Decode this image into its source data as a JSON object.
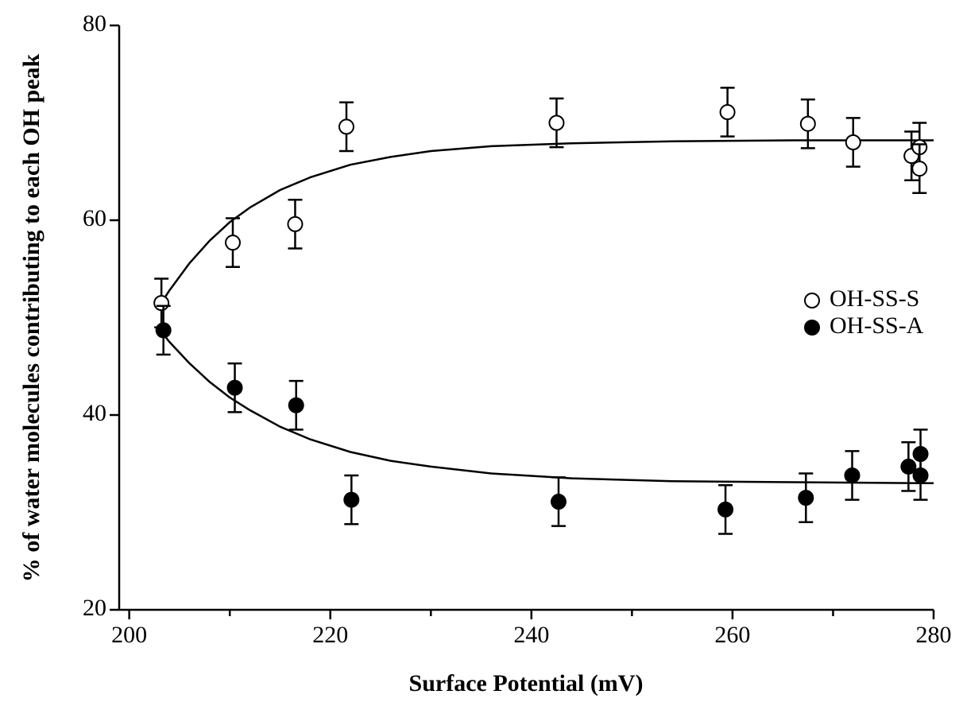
{
  "chart_data": {
    "type": "scatter",
    "xlabel": "Surface Potential (mV)",
    "ylabel": "% of water molecules contributing to each OH peak",
    "xlim": [
      199,
      280
    ],
    "xticks": [
      200,
      220,
      240,
      260,
      280
    ],
    "xminor_ticks": [
      210,
      230,
      250,
      270
    ],
    "ylim": [
      20,
      80
    ],
    "yticks": [
      20,
      40,
      60,
      80
    ],
    "legend": "right",
    "series": [
      {
        "name": "OH-SS-S",
        "color": "#000000",
        "filled": false,
        "x": [
          203.2,
          210.3,
          216.5,
          221.6,
          242.5,
          259.5,
          267.5,
          272.0,
          277.8,
          278.6,
          278.6
        ],
        "values": [
          51.5,
          57.7,
          59.6,
          69.6,
          70.0,
          71.1,
          69.9,
          68.0,
          66.6,
          67.5,
          65.3
        ],
        "errors": [
          2.5,
          2.5,
          2.5,
          2.5,
          2.5,
          2.5,
          2.5,
          2.5,
          2.5,
          2.5,
          2.5
        ]
      },
      {
        "name": "OH-SS-A",
        "color": "#000000",
        "filled": true,
        "x": [
          203.4,
          210.5,
          216.6,
          222.1,
          242.7,
          259.3,
          267.3,
          271.9,
          277.5,
          278.7,
          278.7
        ],
        "values": [
          48.7,
          42.8,
          41.0,
          31.3,
          31.1,
          30.3,
          31.5,
          33.8,
          34.7,
          36.0,
          33.8
        ],
        "errors": [
          2.5,
          2.5,
          2.5,
          2.5,
          2.5,
          2.5,
          2.5,
          2.5,
          2.5,
          2.5,
          2.5
        ]
      }
    ],
    "fits": [
      {
        "x": [
          203,
          204,
          206,
          208,
          210,
          212,
          215,
          218,
          222,
          226,
          230,
          236,
          244,
          254,
          266,
          280
        ],
        "values": [
          51.2,
          52.8,
          55.6,
          57.9,
          59.8,
          61.3,
          63.1,
          64.4,
          65.7,
          66.5,
          67.1,
          67.6,
          67.9,
          68.1,
          68.2,
          68.2
        ]
      },
      {
        "x": [
          203,
          204,
          206,
          208,
          210,
          212,
          215,
          218,
          222,
          226,
          230,
          236,
          244,
          254,
          266,
          280
        ],
        "values": [
          48.8,
          47.5,
          45.3,
          43.4,
          41.8,
          40.5,
          38.8,
          37.5,
          36.2,
          35.3,
          34.7,
          34.0,
          33.5,
          33.2,
          33.1,
          33.0
        ]
      }
    ]
  }
}
